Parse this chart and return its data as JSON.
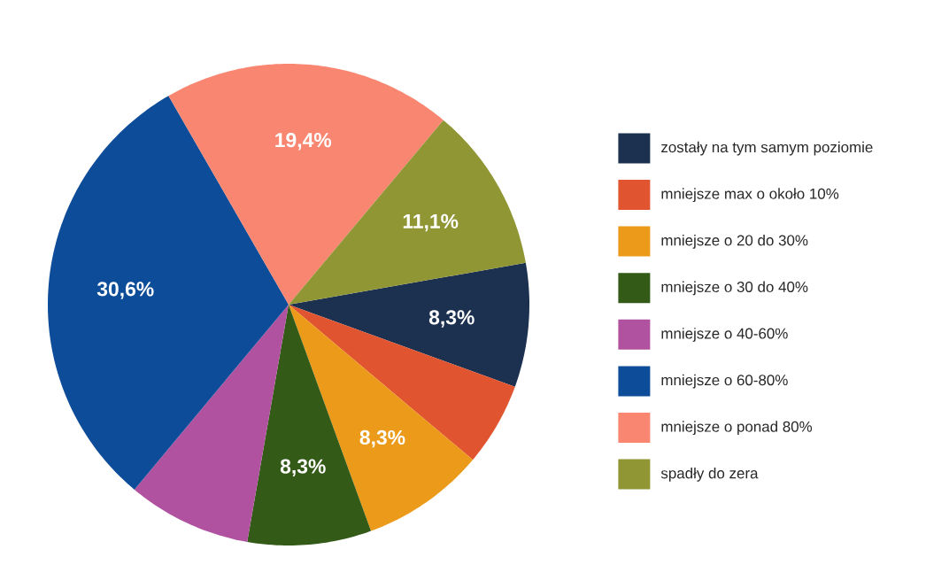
{
  "chart_data": {
    "type": "pie",
    "categories": [
      "zostały na tym samym poziomie",
      "mniejsze max o około 10%",
      "mniejsze o 20 do 30%",
      "mniejsze o 30 do 40%",
      "mniejsze o 40-60%",
      "mniejsze o 60-80%",
      "mniejsze o ponad 80%",
      "spadły do zera"
    ],
    "values": [
      8.3,
      5.6,
      8.3,
      8.3,
      8.3,
      30.6,
      19.4,
      11.1
    ],
    "value_labels": [
      "8,3%",
      null,
      "8,3%",
      "8,3%",
      null,
      "30,6%",
      "19,4%",
      "11,1%"
    ],
    "colors": [
      "#1c3050",
      "#e05530",
      "#eb9a1a",
      "#345a18",
      "#b052a0",
      "#0d4c98",
      "#f98670",
      "#909634"
    ],
    "legend": "right"
  }
}
